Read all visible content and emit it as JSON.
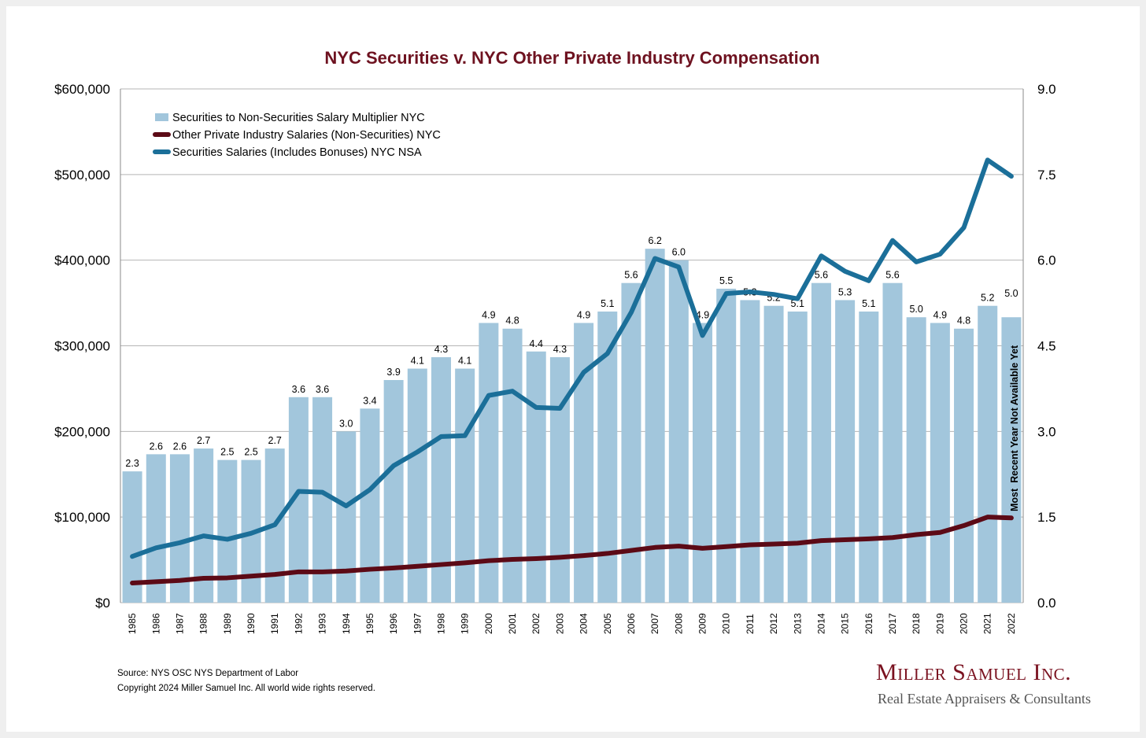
{
  "chart_data": {
    "type": "bar+line",
    "title": "NYC Securities v. NYC Other Private Industry Compensation",
    "categories": [
      "1985",
      "1986",
      "1987",
      "1988",
      "1989",
      "1990",
      "1991",
      "1992",
      "1993",
      "1994",
      "1995",
      "1996",
      "1997",
      "1998",
      "1999",
      "2000",
      "2001",
      "2002",
      "2003",
      "2004",
      "2005",
      "2006",
      "2007",
      "2008",
      "2009",
      "2010",
      "2011",
      "2012",
      "2013",
      "2014",
      "2015",
      "2016",
      "2017",
      "2018",
      "2019",
      "2020",
      "2021",
      "2022"
    ],
    "left_axis": {
      "ylim": [
        0,
        600000
      ],
      "ticks": [
        "$0",
        "$100,000",
        "$200,000",
        "$300,000",
        "$400,000",
        "$500,000",
        "$600,000"
      ]
    },
    "right_axis": {
      "ylim": [
        0,
        9
      ],
      "ticks": [
        "0.0",
        "1.5",
        "3.0",
        "4.5",
        "6.0",
        "7.5",
        "9.0"
      ]
    },
    "series": [
      {
        "name": "Securities to Non-Securities Salary Multiplier NYC",
        "type": "bar",
        "axis": "right",
        "color": "#a2c6dc",
        "values": [
          2.3,
          2.6,
          2.6,
          2.7,
          2.5,
          2.5,
          2.7,
          3.6,
          3.6,
          3.0,
          3.4,
          3.9,
          4.1,
          4.3,
          4.1,
          4.9,
          4.8,
          4.4,
          4.3,
          4.9,
          5.1,
          5.6,
          6.2,
          6.0,
          4.9,
          5.5,
          5.3,
          5.2,
          5.1,
          5.6,
          5.3,
          5.1,
          5.6,
          5.0,
          4.9,
          4.8,
          5.2,
          5.0
        ],
        "labels": [
          "2.3",
          "2.6",
          "2.6",
          "2.7",
          "2.5",
          "2.5",
          "2.7",
          "3.6",
          "3.6",
          "3.0",
          "3.4",
          "3.9",
          "4.1",
          "4.3",
          "4.1",
          "4.9",
          "4.8",
          "4.4",
          "4.3",
          "4.9",
          "5.1",
          "5.6",
          "6.2",
          "6.0",
          "4.9",
          "5.5",
          "5.3",
          "5.2",
          "5.1",
          "5.6",
          "5.3",
          "5.1",
          "5.6",
          "5.0",
          "4.9",
          "4.8",
          "5.2",
          "5.0"
        ]
      },
      {
        "name": "Other Private Industry Salaries (Non-Securities) NYC",
        "type": "line",
        "axis": "left",
        "color": "#5c0a16",
        "values": [
          23000,
          24500,
          26000,
          28500,
          29000,
          31000,
          33000,
          36000,
          36000,
          37000,
          39000,
          40500,
          42500,
          44500,
          46500,
          49000,
          50500,
          51500,
          53000,
          55000,
          57500,
          61000,
          64500,
          66000,
          63500,
          65500,
          67500,
          68500,
          69500,
          72500,
          73500,
          74500,
          76000,
          79500,
          82000,
          90000,
          100000,
          99000
        ]
      },
      {
        "name": "Securities Salaries (Includes Bonuses) NYC NSA",
        "type": "line",
        "axis": "left",
        "color": "#1b6f99",
        "values": [
          54000,
          64000,
          70000,
          78000,
          74000,
          81000,
          91000,
          130000,
          129000,
          113000,
          132000,
          160000,
          176000,
          194000,
          195000,
          242000,
          247000,
          228000,
          227000,
          269000,
          291000,
          339000,
          402000,
          392000,
          312000,
          361000,
          363000,
          360000,
          355000,
          405000,
          387000,
          376000,
          423000,
          398000,
          407000,
          438000,
          517000,
          498000
        ]
      }
    ],
    "annotation": "Most  Recent Year Not Available Yet",
    "legend_position": "top-left",
    "grid": true
  },
  "footer": {
    "source": "Source: NYS OSC NYS Department of Labor",
    "copyright": "Copyright 2024 Miller Samuel Inc.  All world wide rights reserved.",
    "logo_name": "Miller Samuel Inc.",
    "logo_tagline": "Real Estate Appraisers & Consultants"
  }
}
